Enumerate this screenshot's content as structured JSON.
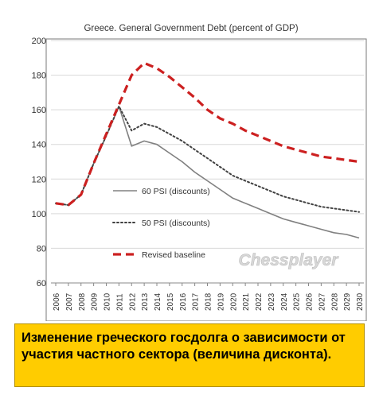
{
  "chart_data": {
    "type": "line",
    "title": "Greece.  General Government Debt (percent of GDP)",
    "x": [
      "2006",
      "2007",
      "2008",
      "2009",
      "2010",
      "2011",
      "2012",
      "2013",
      "2014",
      "2015",
      "2016",
      "2017",
      "2018",
      "2019",
      "2020",
      "2021",
      "2022",
      "2023",
      "2024",
      "2025",
      "2026",
      "2027",
      "2028",
      "2029",
      "2030"
    ],
    "ylim": [
      60,
      200
    ],
    "yticks": [
      "60",
      "80",
      "100",
      "120",
      "140",
      "160",
      "180",
      "200"
    ],
    "grid": "horizontal",
    "legend_position": "left-inside",
    "series": [
      {
        "name": "60 PSI (discounts)",
        "style": "solid",
        "color": "#808080",
        "values": [
          106,
          105,
          111,
          129,
          145,
          162,
          139,
          142,
          140,
          135,
          130,
          124,
          119,
          114,
          109,
          106,
          103,
          100,
          97,
          95,
          93,
          91,
          89,
          88,
          86
        ]
      },
      {
        "name": "50 PSI (discounts)",
        "style": "dotted",
        "color": "#404040",
        "values": [
          106,
          105,
          111,
          129,
          145,
          162,
          148,
          152,
          150,
          146,
          142,
          137,
          132,
          127,
          122,
          119,
          116,
          113,
          110,
          108,
          106,
          104,
          103,
          102,
          101
        ]
      },
      {
        "name": "Revised baseline",
        "style": "dashed",
        "color": "#cc2020",
        "values": [
          106,
          105,
          111,
          129,
          146,
          163,
          180,
          187,
          184,
          179,
          173,
          167,
          160,
          155,
          152,
          148,
          145,
          142,
          139,
          137,
          135,
          133,
          132,
          131,
          130
        ]
      }
    ]
  },
  "watermark": "Chessplayer",
  "caption": "Изменение греческого госдолга о зависимости от участия частного сектора (величина дисконта)."
}
